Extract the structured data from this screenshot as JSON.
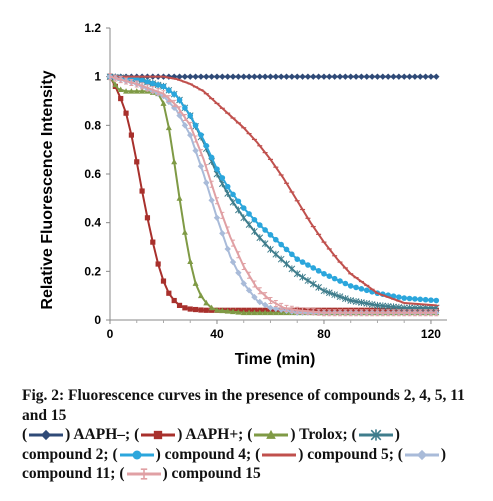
{
  "chart_data": {
    "type": "line",
    "xlabel": "Time (min)",
    "ylabel": "Relative Fluorescence Intensity",
    "xlim": [
      0,
      126
    ],
    "ylim": [
      0,
      1.2
    ],
    "xticks": [
      "0",
      "40",
      "80",
      "120"
    ],
    "yticks": [
      "0",
      "0.2",
      "0.4",
      "0.6",
      "0.8",
      "1",
      "1.2"
    ],
    "grid": false,
    "series": [
      {
        "name": "AAPH–",
        "color": "#2f4a77",
        "marker": "diamond",
        "x": [
          0,
          20,
          40,
          60,
          80,
          100,
          122
        ],
        "y": [
          1.0,
          1.0,
          1.0,
          1.0,
          1.0,
          1.0,
          1.0
        ]
      },
      {
        "name": "AAPH+",
        "color": "#a8302c",
        "marker": "square",
        "x": [
          0,
          2,
          4,
          6,
          8,
          10,
          12,
          14,
          16,
          18,
          20,
          22,
          24,
          26,
          28,
          30,
          35,
          40,
          60,
          80,
          100,
          122
        ],
        "y": [
          1.0,
          0.96,
          0.91,
          0.85,
          0.76,
          0.65,
          0.53,
          0.42,
          0.32,
          0.23,
          0.16,
          0.11,
          0.08,
          0.06,
          0.05,
          0.045,
          0.04,
          0.04,
          0.04,
          0.04,
          0.04,
          0.04
        ]
      },
      {
        "name": "Trolox",
        "color": "#7f9a45",
        "marker": "triangle",
        "x": [
          0,
          3,
          6,
          10,
          14,
          18,
          20,
          22,
          24,
          26,
          28,
          30,
          32,
          34,
          36,
          38,
          40,
          45,
          50,
          60,
          80,
          100,
          122
        ],
        "y": [
          1.0,
          0.95,
          0.94,
          0.94,
          0.94,
          0.93,
          0.89,
          0.79,
          0.65,
          0.5,
          0.36,
          0.24,
          0.15,
          0.1,
          0.07,
          0.05,
          0.04,
          0.035,
          0.03,
          0.03,
          0.03,
          0.03,
          0.03
        ]
      },
      {
        "name": "compound 2",
        "color": "#3f7d8c",
        "marker": "star",
        "x": [
          0,
          10,
          20,
          25,
          30,
          35,
          40,
          45,
          50,
          55,
          60,
          65,
          70,
          80,
          90,
          100,
          110,
          122
        ],
        "y": [
          1.0,
          0.99,
          0.96,
          0.92,
          0.84,
          0.73,
          0.6,
          0.5,
          0.42,
          0.35,
          0.29,
          0.24,
          0.19,
          0.12,
          0.08,
          0.06,
          0.05,
          0.05
        ]
      },
      {
        "name": "compound 4",
        "color": "#2ba6dc",
        "marker": "circle",
        "x": [
          0,
          10,
          20,
          25,
          30,
          35,
          40,
          45,
          50,
          55,
          60,
          65,
          70,
          80,
          90,
          100,
          110,
          122
        ],
        "y": [
          1.0,
          0.99,
          0.96,
          0.92,
          0.84,
          0.74,
          0.62,
          0.53,
          0.46,
          0.4,
          0.35,
          0.3,
          0.25,
          0.19,
          0.14,
          0.11,
          0.09,
          0.08
        ]
      },
      {
        "name": "compound 5",
        "color": "#c0504d",
        "marker": "dash",
        "x": [
          0,
          10,
          20,
          25,
          30,
          35,
          40,
          45,
          50,
          55,
          60,
          65,
          70,
          75,
          80,
          85,
          90,
          100,
          110,
          122
        ],
        "y": [
          1.0,
          1.0,
          1.0,
          0.99,
          0.97,
          0.94,
          0.89,
          0.84,
          0.79,
          0.73,
          0.66,
          0.58,
          0.49,
          0.4,
          0.32,
          0.25,
          0.19,
          0.11,
          0.07,
          0.06
        ]
      },
      {
        "name": "compound 11",
        "color": "#a9bbd9",
        "marker": "diamond",
        "x": [
          0,
          10,
          20,
          25,
          30,
          35,
          40,
          45,
          50,
          55,
          60,
          65,
          70,
          80,
          90,
          100,
          110,
          122
        ],
        "y": [
          1.0,
          0.97,
          0.92,
          0.86,
          0.76,
          0.6,
          0.42,
          0.26,
          0.15,
          0.08,
          0.05,
          0.04,
          0.03,
          0.03,
          0.03,
          0.03,
          0.03,
          0.03
        ]
      },
      {
        "name": "compound 15",
        "color": "#e0a0a4",
        "marker": "bar",
        "x": [
          0,
          10,
          20,
          25,
          30,
          35,
          40,
          45,
          50,
          55,
          60,
          65,
          70,
          80,
          90,
          100,
          110,
          122
        ],
        "y": [
          1.0,
          0.97,
          0.93,
          0.88,
          0.8,
          0.66,
          0.49,
          0.34,
          0.22,
          0.13,
          0.08,
          0.05,
          0.04,
          0.03,
          0.03,
          0.03,
          0.03,
          0.03
        ]
      }
    ]
  },
  "caption": {
    "title": "Fig. 2: Fluorescence curves in the presence of compounds 2, 4, 5, 11 and 15",
    "legend": [
      {
        "label": ") AAPH–;",
        "color": "#2f4a77",
        "marker": "diamond"
      },
      {
        "label": ") AAPH+;",
        "color": "#a8302c",
        "marker": "square"
      },
      {
        "label": ") Trolox;",
        "color": "#7f9a45",
        "marker": "triangle"
      },
      {
        "label": ")",
        "color": "#3f7d8c",
        "marker": "star"
      },
      {
        "label": "compound 2;",
        "color": "",
        "marker": ""
      },
      {
        "label": ") compound 4;",
        "color": "#2ba6dc",
        "marker": "circle"
      },
      {
        "label": ") compound 5;",
        "color": "#c0504d",
        "marker": "dash"
      },
      {
        "label": ")",
        "color": "#a9bbd9",
        "marker": "diamond"
      },
      {
        "label": "compound 11;",
        "color": "",
        "marker": ""
      },
      {
        "label": ") compound 15",
        "color": "#e0a0a4",
        "marker": "bar"
      }
    ]
  }
}
